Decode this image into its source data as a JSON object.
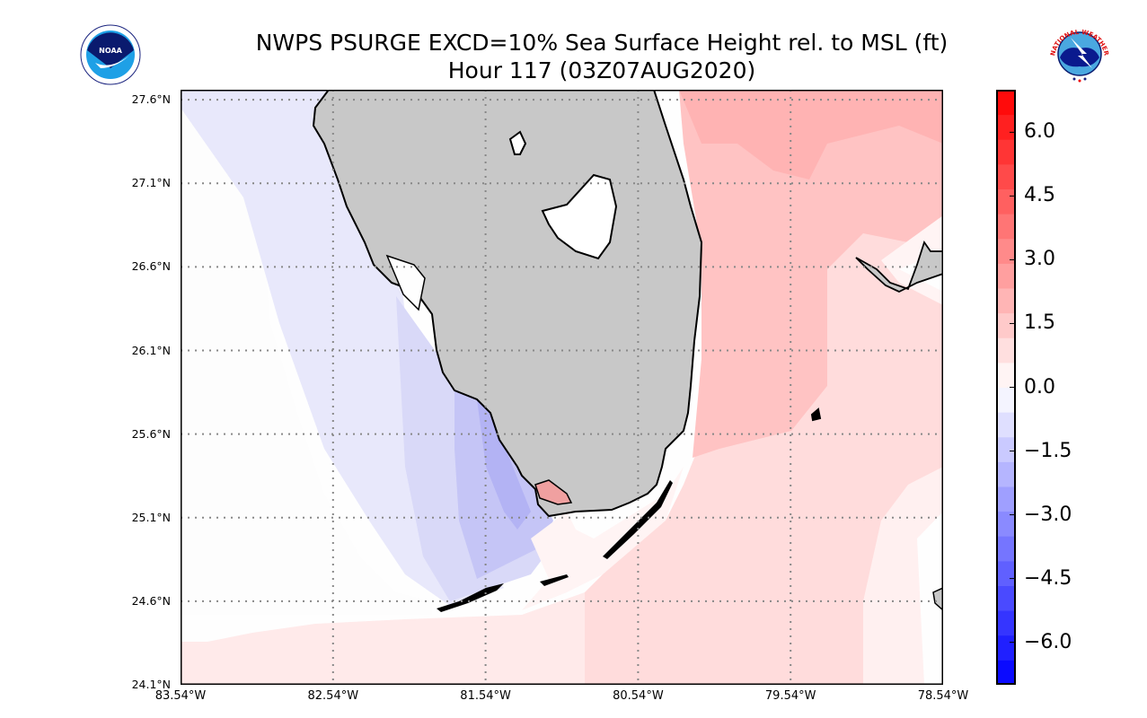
{
  "title": {
    "line1": "NWPS PSURGE EXCD=10% Sea Surface Height rel. to MSL (ft)",
    "line2": "Hour 117 (03Z07AUG2020)"
  },
  "logos": {
    "left": {
      "name": "noaa-logo",
      "text": "NOAA"
    },
    "right": {
      "name": "nws-logo",
      "text": "NATIONAL WEATHER SERVICE"
    }
  },
  "map": {
    "lat_labels": [
      "27.6°N",
      "27.1°N",
      "26.6°N",
      "26.1°N",
      "25.6°N",
      "25.1°N",
      "24.6°N",
      "24.1°N"
    ],
    "lat_values": [
      27.6,
      27.1,
      26.6,
      26.1,
      25.6,
      25.1,
      24.6,
      24.1
    ],
    "lon_labels": [
      "83.54°W",
      "82.54°W",
      "81.54°W",
      "80.54°W",
      "79.54°W",
      "78.54°W"
    ],
    "lon_values": [
      -83.54,
      -82.54,
      -81.54,
      -80.54,
      -79.54,
      -78.54
    ],
    "lat_range": [
      24.1,
      27.66
    ],
    "lon_range": [
      -83.54,
      -78.54
    ],
    "land_color": "#c8c8c8",
    "lake_color": "#ffffff"
  },
  "colorbar": {
    "min": -7.0,
    "max": 7.0,
    "bins": 24,
    "tick_labels": [
      "6.0",
      "4.5",
      "3.0",
      "1.5",
      "0.0",
      "−1.5",
      "−3.0",
      "−4.5",
      "−6.0"
    ],
    "tick_values": [
      6.0,
      4.5,
      3.0,
      1.5,
      0.0,
      -1.5,
      -3.0,
      -4.5,
      -6.0
    ],
    "low_color": "#0000ff",
    "mid_color": "#ffffff",
    "high_color": "#ff0000"
  }
}
